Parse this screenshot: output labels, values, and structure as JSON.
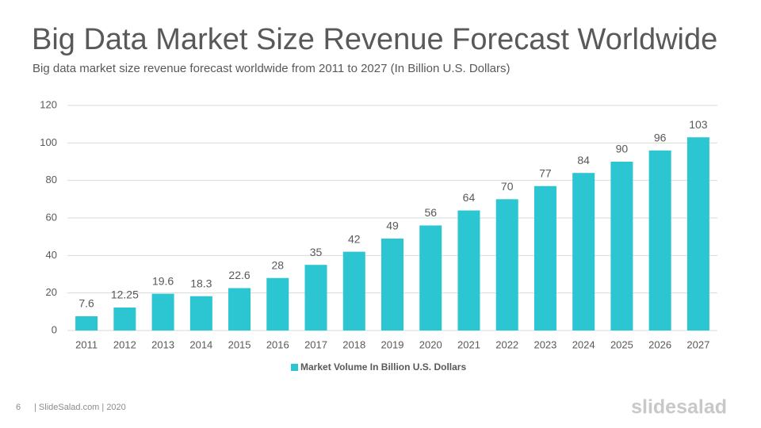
{
  "chart_data": {
    "type": "bar",
    "title": "Big Data Market Size Revenue Forecast Worldwide",
    "subtitle": "Big data market size revenue forecast worldwide from 2011 to 2027 (In Billion U.S. Dollars)",
    "categories": [
      "2011",
      "2012",
      "2013",
      "2014",
      "2015",
      "2016",
      "2017",
      "2018",
      "2019",
      "2020",
      "2021",
      "2022",
      "2023",
      "2024",
      "2025",
      "2026",
      "2027"
    ],
    "series": [
      {
        "name": "Market Volume In Billion U.S. Dollars",
        "color": "#2cc5d2",
        "values": [
          7.6,
          12.25,
          19.6,
          18.3,
          22.6,
          28,
          35,
          42,
          49,
          56,
          64,
          70,
          77,
          84,
          90,
          96,
          103
        ]
      }
    ],
    "ylim": [
      0,
      120
    ],
    "yticks": [
      0,
      20,
      40,
      60,
      80,
      100,
      120
    ],
    "grid": true,
    "legend": "bottom"
  },
  "footer": {
    "page_number": "6",
    "text": "| SlideSalad.com | 2020",
    "logo": "slidesalad"
  }
}
